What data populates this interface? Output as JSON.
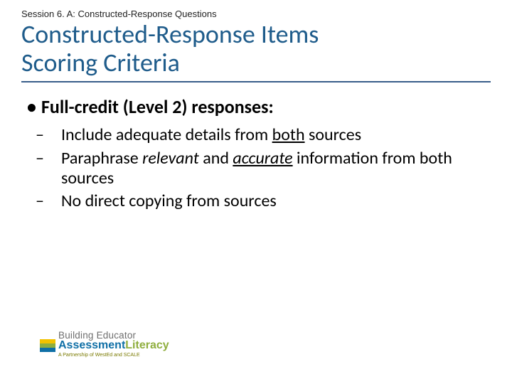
{
  "session_label": "Session 6. A: Constructed-Response Questions",
  "title_line1": "Constructed-Response Items",
  "title_line2": "Scoring Criteria",
  "bullet_main": "Full-credit (Level 2) responses:",
  "sub1_prefix": "Include adequate details from ",
  "sub1_em": "both",
  "sub1_suffix": " sources",
  "sub2_prefix": "Paraphrase ",
  "sub2_em1": "relevant",
  "sub2_mid": " and ",
  "sub2_em2": "accurate",
  "sub2_suffix": " information from both sources",
  "sub3": "No direct copying from sources",
  "logo_top": "Building Educator",
  "logo_assess": "Assessment",
  "logo_lit": "Literacy",
  "logo_sub": "A Partnership of WestEd and SCALE",
  "colors": {
    "title": "#1f5c8b",
    "rule": "#385d8a",
    "logo_blue": "#0f6fa6",
    "logo_green": "#8fae3e",
    "logo_yellow": "#f2c200",
    "logo_gray": "#6e6e6e"
  }
}
